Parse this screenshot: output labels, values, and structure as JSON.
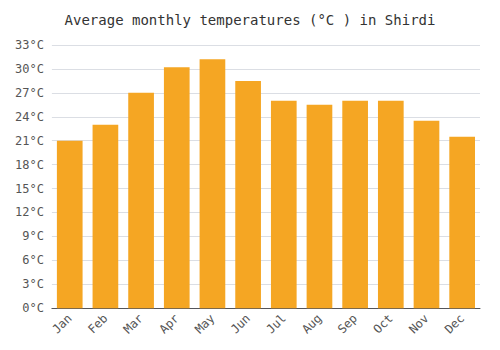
{
  "chart_data": {
    "type": "bar",
    "title": "Average monthly temperatures (°C ) in Shirdi",
    "categories": [
      "Jan",
      "Feb",
      "Mar",
      "Apr",
      "May",
      "Jun",
      "Jul",
      "Aug",
      "Sep",
      "Oct",
      "Nov",
      "Dec"
    ],
    "values": [
      21,
      23,
      27,
      30.2,
      31.2,
      28.5,
      26,
      25.5,
      26,
      26,
      23.5,
      21.5
    ],
    "color": "#F5A623",
    "ylim": [
      0,
      33
    ],
    "yticks": [
      {
        "value": 0,
        "label": "0°C"
      },
      {
        "value": 3,
        "label": "3°C"
      },
      {
        "value": 6,
        "label": "6°C"
      },
      {
        "value": 9,
        "label": "9°C"
      },
      {
        "value": 12,
        "label": "12°C"
      },
      {
        "value": 15,
        "label": "15°C"
      },
      {
        "value": 18,
        "label": "18°C"
      },
      {
        "value": 21,
        "label": "21°C"
      },
      {
        "value": 24,
        "label": "24°C"
      },
      {
        "value": 27,
        "label": "27°C"
      },
      {
        "value": 30,
        "label": "30°C"
      },
      {
        "value": 33,
        "label": "33°C"
      }
    ],
    "grid": true
  }
}
